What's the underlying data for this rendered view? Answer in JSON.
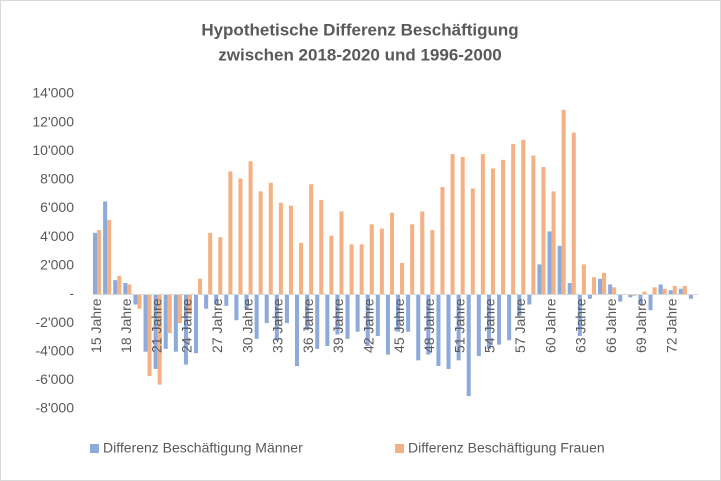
{
  "chart_data": {
    "type": "bar",
    "title": [
      "Hypothetische Differenz Beschäftigung",
      "zwischen 2018-2020 und 1996-2000"
    ],
    "categories": [
      "15 Jahre",
      null,
      null,
      "18 Jahre",
      null,
      null,
      "21 Jahre",
      null,
      null,
      "24 Jahre",
      null,
      null,
      "27 Jahre",
      null,
      null,
      "30 Jahre",
      null,
      null,
      "33 Jahre",
      null,
      null,
      "36 Jahre",
      null,
      null,
      "39 Jahre",
      null,
      null,
      "42 Jahre",
      null,
      null,
      "45 Jahre",
      null,
      null,
      "48 Jahre",
      null,
      null,
      "51 Jahre",
      null,
      null,
      "54 Jahre",
      null,
      null,
      "57 Jahre",
      null,
      null,
      "60 Jahre",
      null,
      null,
      "63 Jahre",
      null,
      null,
      "66 Jahre",
      null,
      null,
      "69 Jahre",
      null,
      null,
      "72 Jahre",
      null,
      null
    ],
    "series": [
      {
        "name": "Differenz Beschäftigung Männer",
        "color": "#8eaadb",
        "values": [
          4300,
          6500,
          1000,
          800,
          -700,
          -4000,
          -5200,
          -3800,
          -4000,
          -4900,
          -4100,
          -1000,
          -700,
          -800,
          -1800,
          -1000,
          -3100,
          -2000,
          -3200,
          -2000,
          -5000,
          -2500,
          -3800,
          -3600,
          -2800,
          -3100,
          -2600,
          -3600,
          -2900,
          -4200,
          -2600,
          -2600,
          -4600,
          -4200,
          -5000,
          -5200,
          -4600,
          -7100,
          -4300,
          -3800,
          -3500,
          -3200,
          -1500,
          -700,
          2100,
          4400,
          3400,
          800,
          -2900,
          -300,
          1100,
          700,
          -500,
          -200,
          -700,
          -1100,
          700,
          300,
          400,
          -300
        ]
      },
      {
        "name": "Differenz Beschäftigung Frauen",
        "color": "#f4b183",
        "values": [
          4500,
          5200,
          1300,
          700,
          -1000,
          -5700,
          -6300,
          -2700,
          -2000,
          -1400,
          1100,
          4300,
          4000,
          8600,
          8100,
          9300,
          7200,
          7800,
          6400,
          6200,
          3600,
          7700,
          6600,
          4100,
          5800,
          3500,
          3500,
          4900,
          4600,
          5700,
          2200,
          4900,
          5800,
          4500,
          7500,
          9800,
          9600,
          7400,
          9800,
          8800,
          9400,
          10500,
          10800,
          9700,
          8900,
          7200,
          12900,
          11300,
          2100,
          1200,
          1500,
          500,
          0,
          -100,
          200,
          500,
          400,
          600,
          600,
          0
        ]
      }
    ],
    "ylim": [
      -8000,
      14000
    ],
    "yticks": [
      {
        "value": -8000,
        "label": "-8'000"
      },
      {
        "value": -6000,
        "label": "-6'000"
      },
      {
        "value": -4000,
        "label": "-4'000"
      },
      {
        "value": -2000,
        "label": "-2'000"
      },
      {
        "value": 0,
        "label": "-"
      },
      {
        "value": 2000,
        "label": "2'000"
      },
      {
        "value": 4000,
        "label": "4'000"
      },
      {
        "value": 6000,
        "label": "6'000"
      },
      {
        "value": 8000,
        "label": "8'000"
      },
      {
        "value": 10000,
        "label": "10'000"
      },
      {
        "value": 12000,
        "label": "12'000"
      },
      {
        "value": 14000,
        "label": "14'000"
      }
    ],
    "grid": false,
    "legend": "bottom"
  }
}
